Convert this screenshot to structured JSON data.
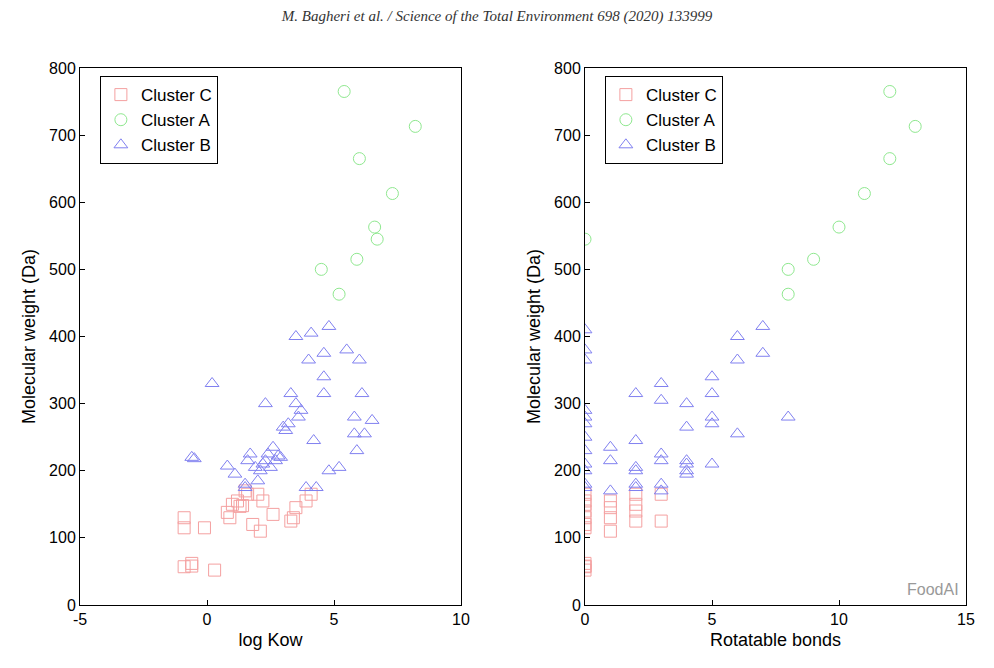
{
  "header": "M. Bagheri et al. / Science of the Total Environment 698 (2020) 133999",
  "chart_data": [
    {
      "type": "scatter",
      "xlabel": "log Kow",
      "ylabel": "Molecular weight (Da)",
      "xlim": [
        -5,
        10
      ],
      "xticks": [
        -5,
        0,
        5,
        10
      ],
      "ylim": [
        0,
        800
      ],
      "yticks": [
        0,
        100,
        200,
        300,
        400,
        500,
        600,
        700,
        800
      ],
      "grid": false,
      "legend": "upper left",
      "series": [
        {
          "name": "Cluster C",
          "color": "#f4a0a0",
          "marker": "square",
          "x": [
            -0.9,
            -0.9,
            -0.9,
            -0.6,
            -0.6,
            -0.1,
            0.3,
            0.8,
            0.9,
            1.0,
            1.2,
            1.3,
            1.4,
            1.6,
            1.8,
            2.0,
            2.1,
            2.2,
            2.6,
            3.3,
            3.4,
            3.5,
            3.9,
            4.1,
            1.5
          ],
          "values": [
            130,
            115,
            57,
            62,
            58,
            115,
            52,
            138,
            130,
            150,
            155,
            147,
            148,
            165,
            120,
            165,
            110,
            155,
            135,
            125,
            130,
            145,
            155,
            165,
            170
          ]
        },
        {
          "name": "Cluster A",
          "color": "#8fe88f",
          "marker": "circle",
          "x": [
            5.4,
            8.2,
            6.0,
            7.3,
            6.6,
            6.7,
            5.9,
            4.5,
            5.2
          ],
          "values": [
            765,
            713,
            665,
            613,
            563,
            545,
            515,
            500,
            463
          ]
        },
        {
          "name": "Cluster B",
          "color": "#8080f0",
          "marker": "triangle",
          "x": [
            0.2,
            -0.6,
            -0.5,
            0.8,
            1.1,
            1.5,
            1.5,
            1.6,
            1.7,
            1.9,
            2.1,
            2.2,
            2.3,
            2.3,
            2.4,
            2.5,
            2.6,
            2.7,
            2.8,
            2.9,
            3.0,
            3.1,
            3.2,
            3.3,
            3.5,
            3.6,
            3.7,
            3.5,
            4.0,
            4.1,
            4.2,
            4.3,
            4.6,
            4.6,
            4.6,
            4.8,
            4.8,
            5.2,
            5.5,
            5.8,
            5.8,
            5.9,
            6.0,
            6.1,
            6.2,
            6.5,
            3.9,
            2.0
          ],
          "values": [
            330,
            220,
            218,
            207,
            195,
            175,
            180,
            215,
            225,
            205,
            200,
            210,
            215,
            300,
            225,
            205,
            235,
            215,
            222,
            220,
            265,
            260,
            270,
            315,
            300,
            280,
            290,
            400,
            365,
            405,
            245,
            175,
            375,
            340,
            315,
            415,
            200,
            205,
            380,
            280,
            255,
            230,
            365,
            315,
            255,
            275,
            175,
            185
          ]
        }
      ]
    },
    {
      "type": "scatter",
      "xlabel": "Rotatable bonds",
      "ylabel": "Molecular weight (Da)",
      "xlim": [
        0,
        15
      ],
      "xticks": [
        0,
        5,
        10,
        15
      ],
      "ylim": [
        0,
        800
      ],
      "yticks": [
        0,
        100,
        200,
        300,
        400,
        500,
        600,
        700,
        800
      ],
      "grid": false,
      "legend": "upper left",
      "annotations": [
        "FoodAI"
      ],
      "series": [
        {
          "name": "Cluster C",
          "color": "#f4a0a0",
          "marker": "square",
          "x": [
            0,
            0,
            0,
            0,
            0,
            0,
            0,
            0,
            0,
            0,
            0,
            1,
            1,
            1,
            1,
            2,
            2,
            2,
            2,
            3,
            3
          ],
          "values": [
            130,
            115,
            57,
            62,
            58,
            52,
            150,
            140,
            155,
            165,
            120,
            110,
            130,
            145,
            155,
            125,
            150,
            165,
            140,
            125,
            165
          ]
        },
        {
          "name": "Cluster A",
          "color": "#8fe88f",
          "marker": "circle",
          "x": [
            12,
            13,
            12,
            11,
            10,
            0,
            9,
            8,
            8
          ],
          "values": [
            765,
            713,
            665,
            613,
            563,
            545,
            515,
            500,
            463
          ]
        },
        {
          "name": "Cluster B",
          "color": "#8080f0",
          "marker": "triangle",
          "x": [
            0,
            0,
            0,
            0,
            0,
            0,
            0,
            0,
            0,
            0,
            0,
            0,
            1,
            1,
            1,
            2,
            2,
            2,
            2,
            2,
            2,
            3,
            3,
            3,
            3,
            3,
            3,
            4,
            4,
            4,
            4,
            4,
            4,
            5,
            5,
            5,
            5,
            5,
            6,
            6,
            6,
            7,
            7,
            8
          ],
          "values": [
            410,
            380,
            365,
            290,
            280,
            270,
            250,
            230,
            210,
            200,
            180,
            175,
            235,
            215,
            170,
            315,
            245,
            205,
            200,
            180,
            175,
            330,
            305,
            225,
            215,
            180,
            170,
            300,
            265,
            215,
            210,
            200,
            195,
            340,
            315,
            280,
            270,
            210,
            400,
            365,
            255,
            415,
            375,
            280
          ]
        }
      ]
    }
  ]
}
